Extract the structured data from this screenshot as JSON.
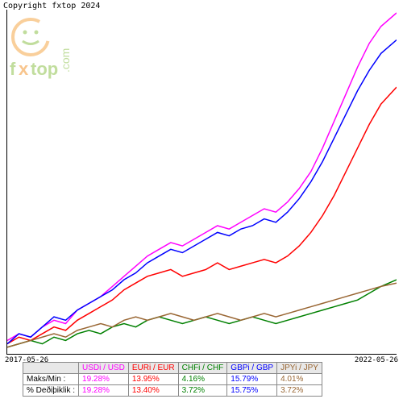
{
  "copyright": "Copyright fxtop 2024",
  "logo": {
    "brand": "fxtop",
    "brand_x_color": "#f28c1e",
    "brand_text_color": "#84bd3e",
    "dotcom": ".com",
    "face_color": "#84bd3e",
    "circle_color": "#f5a13a"
  },
  "chart": {
    "type": "line",
    "x_start": "2017-05-26",
    "x_end": "2022-05-26",
    "background": "#ffffff",
    "axis_color": "#000000",
    "series": [
      {
        "name": "USDi / USD",
        "color": "#ff00ff",
        "points": [
          [
            0,
            0.03
          ],
          [
            0.03,
            0.05
          ],
          [
            0.06,
            0.04
          ],
          [
            0.09,
            0.07
          ],
          [
            0.12,
            0.09
          ],
          [
            0.15,
            0.08
          ],
          [
            0.18,
            0.12
          ],
          [
            0.21,
            0.14
          ],
          [
            0.24,
            0.16
          ],
          [
            0.27,
            0.19
          ],
          [
            0.3,
            0.22
          ],
          [
            0.33,
            0.25
          ],
          [
            0.36,
            0.28
          ],
          [
            0.39,
            0.3
          ],
          [
            0.42,
            0.32
          ],
          [
            0.45,
            0.31
          ],
          [
            0.48,
            0.33
          ],
          [
            0.51,
            0.35
          ],
          [
            0.54,
            0.37
          ],
          [
            0.57,
            0.36
          ],
          [
            0.6,
            0.38
          ],
          [
            0.63,
            0.4
          ],
          [
            0.66,
            0.42
          ],
          [
            0.69,
            0.41
          ],
          [
            0.72,
            0.44
          ],
          [
            0.75,
            0.48
          ],
          [
            0.78,
            0.53
          ],
          [
            0.81,
            0.6
          ],
          [
            0.84,
            0.68
          ],
          [
            0.87,
            0.76
          ],
          [
            0.9,
            0.84
          ],
          [
            0.93,
            0.91
          ],
          [
            0.96,
            0.96
          ],
          [
            1.0,
            1.0
          ]
        ]
      },
      {
        "name": "EURi / EUR",
        "color": "#ff0000",
        "points": [
          [
            0,
            0.02
          ],
          [
            0.03,
            0.04
          ],
          [
            0.06,
            0.03
          ],
          [
            0.09,
            0.05
          ],
          [
            0.12,
            0.07
          ],
          [
            0.15,
            0.06
          ],
          [
            0.18,
            0.09
          ],
          [
            0.21,
            0.11
          ],
          [
            0.24,
            0.13
          ],
          [
            0.27,
            0.15
          ],
          [
            0.3,
            0.18
          ],
          [
            0.33,
            0.2
          ],
          [
            0.36,
            0.22
          ],
          [
            0.39,
            0.23
          ],
          [
            0.42,
            0.24
          ],
          [
            0.45,
            0.22
          ],
          [
            0.48,
            0.23
          ],
          [
            0.51,
            0.24
          ],
          [
            0.54,
            0.26
          ],
          [
            0.57,
            0.24
          ],
          [
            0.6,
            0.25
          ],
          [
            0.63,
            0.26
          ],
          [
            0.66,
            0.27
          ],
          [
            0.69,
            0.26
          ],
          [
            0.72,
            0.28
          ],
          [
            0.75,
            0.31
          ],
          [
            0.78,
            0.35
          ],
          [
            0.81,
            0.4
          ],
          [
            0.84,
            0.46
          ],
          [
            0.87,
            0.53
          ],
          [
            0.9,
            0.6
          ],
          [
            0.93,
            0.67
          ],
          [
            0.96,
            0.73
          ],
          [
            1.0,
            0.78
          ]
        ]
      },
      {
        "name": "CHFi / CHF",
        "color": "#008000",
        "points": [
          [
            0,
            0.01
          ],
          [
            0.03,
            0.02
          ],
          [
            0.06,
            0.03
          ],
          [
            0.09,
            0.02
          ],
          [
            0.12,
            0.04
          ],
          [
            0.15,
            0.03
          ],
          [
            0.18,
            0.05
          ],
          [
            0.21,
            0.06
          ],
          [
            0.24,
            0.05
          ],
          [
            0.27,
            0.07
          ],
          [
            0.3,
            0.08
          ],
          [
            0.33,
            0.07
          ],
          [
            0.36,
            0.09
          ],
          [
            0.39,
            0.1
          ],
          [
            0.42,
            0.09
          ],
          [
            0.45,
            0.08
          ],
          [
            0.48,
            0.09
          ],
          [
            0.51,
            0.1
          ],
          [
            0.54,
            0.09
          ],
          [
            0.57,
            0.08
          ],
          [
            0.6,
            0.09
          ],
          [
            0.63,
            0.1
          ],
          [
            0.66,
            0.09
          ],
          [
            0.69,
            0.08
          ],
          [
            0.72,
            0.09
          ],
          [
            0.75,
            0.1
          ],
          [
            0.78,
            0.11
          ],
          [
            0.81,
            0.12
          ],
          [
            0.84,
            0.13
          ],
          [
            0.87,
            0.14
          ],
          [
            0.9,
            0.15
          ],
          [
            0.93,
            0.17
          ],
          [
            0.96,
            0.19
          ],
          [
            1.0,
            0.21
          ]
        ]
      },
      {
        "name": "GBPi / GBP",
        "color": "#0000ff",
        "points": [
          [
            0,
            0.02
          ],
          [
            0.03,
            0.05
          ],
          [
            0.06,
            0.04
          ],
          [
            0.09,
            0.07
          ],
          [
            0.12,
            0.1
          ],
          [
            0.15,
            0.09
          ],
          [
            0.18,
            0.12
          ],
          [
            0.21,
            0.14
          ],
          [
            0.24,
            0.16
          ],
          [
            0.27,
            0.18
          ],
          [
            0.3,
            0.21
          ],
          [
            0.33,
            0.23
          ],
          [
            0.36,
            0.26
          ],
          [
            0.39,
            0.28
          ],
          [
            0.42,
            0.3
          ],
          [
            0.45,
            0.29
          ],
          [
            0.48,
            0.31
          ],
          [
            0.51,
            0.33
          ],
          [
            0.54,
            0.35
          ],
          [
            0.57,
            0.34
          ],
          [
            0.6,
            0.36
          ],
          [
            0.63,
            0.37
          ],
          [
            0.66,
            0.39
          ],
          [
            0.69,
            0.38
          ],
          [
            0.72,
            0.41
          ],
          [
            0.75,
            0.45
          ],
          [
            0.78,
            0.5
          ],
          [
            0.81,
            0.56
          ],
          [
            0.84,
            0.63
          ],
          [
            0.87,
            0.7
          ],
          [
            0.9,
            0.77
          ],
          [
            0.93,
            0.83
          ],
          [
            0.96,
            0.88
          ],
          [
            1.0,
            0.92
          ]
        ]
      },
      {
        "name": "JPYi / JPY",
        "color": "#996633",
        "points": [
          [
            0,
            0.01
          ],
          [
            0.03,
            0.02
          ],
          [
            0.06,
            0.03
          ],
          [
            0.09,
            0.04
          ],
          [
            0.12,
            0.05
          ],
          [
            0.15,
            0.04
          ],
          [
            0.18,
            0.06
          ],
          [
            0.21,
            0.07
          ],
          [
            0.24,
            0.08
          ],
          [
            0.27,
            0.07
          ],
          [
            0.3,
            0.09
          ],
          [
            0.33,
            0.1
          ],
          [
            0.36,
            0.09
          ],
          [
            0.39,
            0.1
          ],
          [
            0.42,
            0.11
          ],
          [
            0.45,
            0.1
          ],
          [
            0.48,
            0.09
          ],
          [
            0.51,
            0.1
          ],
          [
            0.54,
            0.11
          ],
          [
            0.57,
            0.1
          ],
          [
            0.6,
            0.09
          ],
          [
            0.63,
            0.1
          ],
          [
            0.66,
            0.11
          ],
          [
            0.69,
            0.1
          ],
          [
            0.72,
            0.11
          ],
          [
            0.75,
            0.12
          ],
          [
            0.78,
            0.13
          ],
          [
            0.81,
            0.14
          ],
          [
            0.84,
            0.15
          ],
          [
            0.87,
            0.16
          ],
          [
            0.9,
            0.17
          ],
          [
            0.93,
            0.18
          ],
          [
            0.96,
            0.19
          ],
          [
            1.0,
            0.2
          ]
        ]
      }
    ]
  },
  "table": {
    "header_bg": "#e8e8e8",
    "rows": [
      {
        "label": "",
        "cells": [
          "USDi / USD",
          "EURi / EUR",
          "CHFi / CHF",
          "GBPi / GBP",
          "JPYi / JPY"
        ]
      },
      {
        "label": "Maks/Min :",
        "cells": [
          "19.28%",
          "13.95%",
          "4.16%",
          "15.79%",
          "4.01%"
        ]
      },
      {
        "label": "% Deðiþiklik :",
        "cells": [
          "19.28%",
          "13.40%",
          "3.72%",
          "15.75%",
          "3.72%"
        ]
      }
    ],
    "colors": [
      "#ff00ff",
      "#ff0000",
      "#008000",
      "#0000ff",
      "#996633"
    ]
  }
}
